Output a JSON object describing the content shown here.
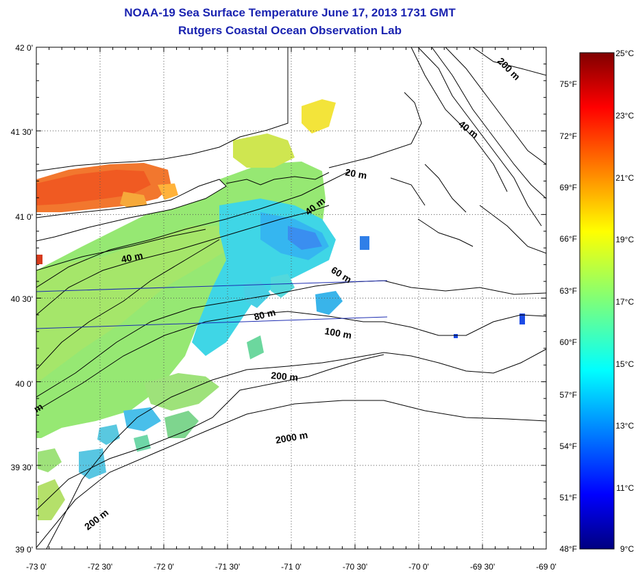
{
  "header": {
    "title": "NOAA-19 Sea Surface Temperature June 17, 2013 1731 GMT",
    "subtitle": "Rutgers Coastal Ocean Observation Lab"
  },
  "map": {
    "lat_labels": [
      "42 0'",
      "41 30'",
      "41 0'",
      "40 30'",
      "40 0'",
      "39 30'",
      "39 0'"
    ],
    "lon_labels": [
      "-73 0'",
      "-72 30'",
      "-72 0'",
      "-71 30'",
      "-71 0'",
      "-70 30'",
      "-70 0'",
      "-69 30'",
      "-69 0'"
    ],
    "contour_labels": [
      "200 m",
      "40 m",
      "20 m",
      "40 m",
      "40 m",
      "60 m",
      "80 m",
      "100 m",
      "200 m",
      "2000 m",
      "200 m",
      "m"
    ],
    "land_color": "#ffffff",
    "grid_color": "#555555"
  },
  "colorbar": {
    "celsius_labels": [
      "25°C",
      "23°C",
      "21°C",
      "19°C",
      "17°C",
      "15°C",
      "13°C",
      "11°C",
      "9°C"
    ],
    "fahrenheit_labels": [
      "75°F",
      "72°F",
      "69°F",
      "66°F",
      "63°F",
      "60°F",
      "57°F",
      "54°F",
      "51°F",
      "48°F"
    ],
    "celsius_range": [
      9,
      25
    ]
  }
}
